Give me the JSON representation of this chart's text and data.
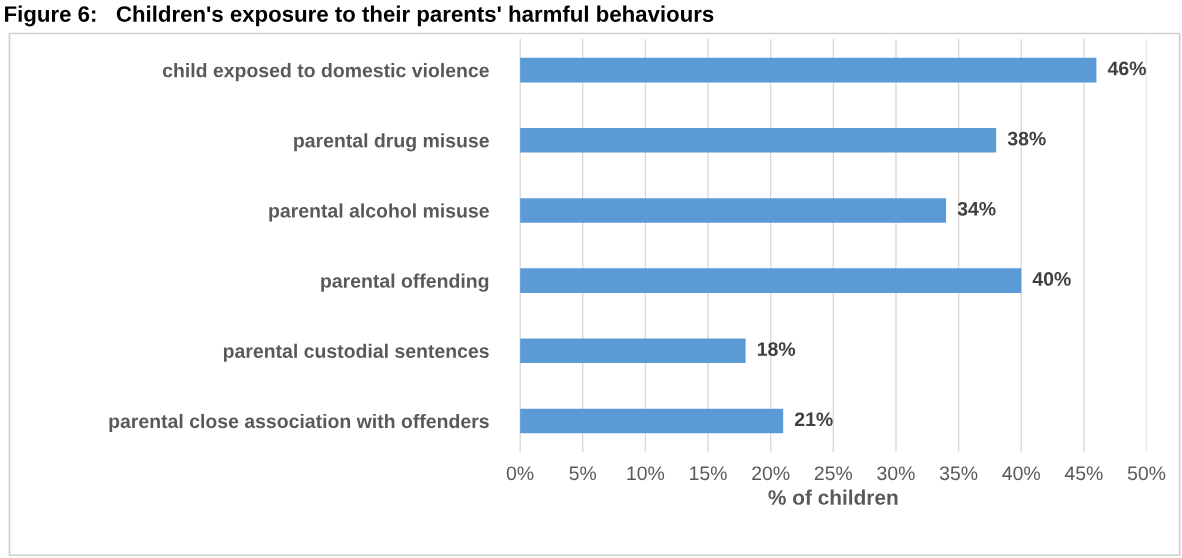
{
  "chart_data": {
    "type": "bar",
    "orientation": "horizontal",
    "title": "Figure 6:   Children's exposure to their parents' harmful behaviours",
    "xlabel": "% of children",
    "categories": [
      "child exposed to domestic violence",
      "parental drug misuse",
      "parental alcohol misuse",
      "parental offending",
      "parental custodial sentences",
      "parental close association with offenders"
    ],
    "values": [
      46,
      38,
      34,
      40,
      18,
      21
    ],
    "value_labels": [
      "46%",
      "38%",
      "34%",
      "40%",
      "18%",
      "21%"
    ],
    "color": "#5b9bd5",
    "xlim": [
      0,
      50
    ],
    "xticks": [
      {
        "value": 0,
        "label": "0%"
      },
      {
        "value": 5,
        "label": "5%"
      },
      {
        "value": 10,
        "label": "10%"
      },
      {
        "value": 15,
        "label": "15%"
      },
      {
        "value": 20,
        "label": "20%"
      },
      {
        "value": 25,
        "label": "25%"
      },
      {
        "value": 30,
        "label": "30%"
      },
      {
        "value": 35,
        "label": "35%"
      },
      {
        "value": 40,
        "label": "40%"
      },
      {
        "value": 45,
        "label": "45%"
      },
      {
        "value": 50,
        "label": "50%"
      }
    ],
    "grid": "x"
  }
}
